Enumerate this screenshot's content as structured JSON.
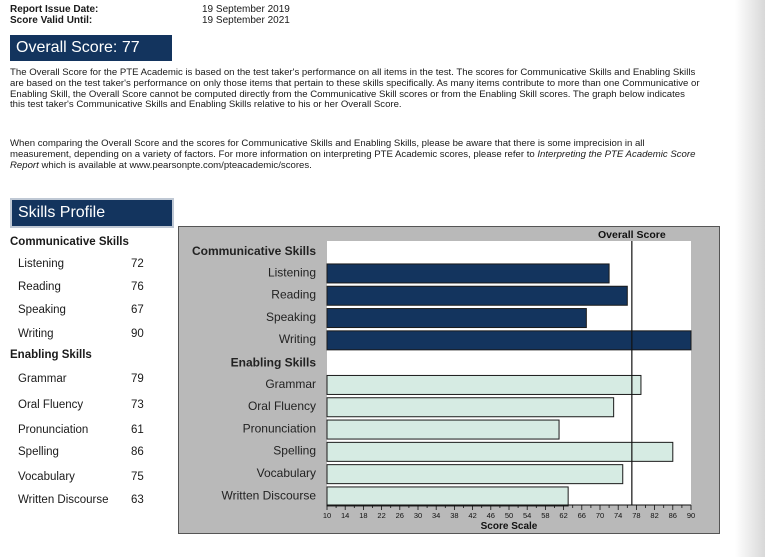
{
  "report": {
    "issue_label": "Report Issue Date:",
    "issue_date": "19 September 2019",
    "valid_label": "Score Valid Until:",
    "valid_date": "19 September 2021"
  },
  "overall": {
    "label": "Overall Score:",
    "score": "77"
  },
  "paragraph1": "The Overall Score for the PTE Academic is based on the test taker's performance on all items in the test.  The scores for Communicative Skills and Enabling Skills are based on the test taker's performance on only those items that pertain to these skills specifically.  As many items contribute to more than one Communicative or Enabling Skill, the Overall Score cannot be computed directly from the Communicative Skill scores or from the Enabling Skill scores.  The graph below indicates this test taker's Communicative Skills and Enabling Skills relative to his or her Overall Score.",
  "paragraph2": {
    "text": "When comparing the Overall Score and the scores for Communicative Skills and Enabling Skills, please be aware that there is some imprecision in all measurement, depending on a variety of factors.  For more information on interpreting PTE Academic scores, please refer to ",
    "italic": "Interpreting the PTE Academic Score Report",
    "tail": " which is available at www.pearsonpte.com/pteacademic/scores."
  },
  "skills_profile": {
    "title": "Skills Profile",
    "communicative_title": "Communicative Skills",
    "communicative": [
      {
        "name": "Listening",
        "score": "72"
      },
      {
        "name": "Reading",
        "score": "76"
      },
      {
        "name": "Speaking",
        "score": "67"
      },
      {
        "name": "Writing",
        "score": "90"
      }
    ],
    "enabling_title": "Enabling Skills",
    "enabling": [
      {
        "name": "Grammar",
        "score": "79"
      },
      {
        "name": "Oral Fluency",
        "score": "73"
      },
      {
        "name": "Pronunciation",
        "score": "61"
      },
      {
        "name": "Spelling",
        "score": "86"
      },
      {
        "name": "Vocabulary",
        "score": "75"
      },
      {
        "name": "Written Discourse",
        "score": "63"
      }
    ]
  },
  "chart_data": {
    "type": "bar",
    "orientation": "horizontal",
    "xlabel": "Score Scale",
    "xlim": [
      10,
      90
    ],
    "xticks": [
      10,
      14,
      18,
      22,
      26,
      30,
      34,
      38,
      42,
      46,
      50,
      54,
      58,
      62,
      66,
      70,
      74,
      78,
      82,
      86,
      90
    ],
    "reference_line": {
      "label": "Overall Score",
      "value": 77
    },
    "groups": [
      {
        "name": "Communicative Skills",
        "color": "#13345e",
        "categories": [
          "Listening",
          "Reading",
          "Speaking",
          "Writing"
        ],
        "values": [
          72,
          76,
          67,
          90
        ]
      },
      {
        "name": "Enabling Skills",
        "color": "#d6ebe3",
        "categories": [
          "Grammar",
          "Oral Fluency",
          "Pronunciation",
          "Spelling",
          "Vocabulary",
          "Written Discourse"
        ],
        "values": [
          79,
          73,
          61,
          86,
          75,
          63
        ]
      }
    ]
  }
}
